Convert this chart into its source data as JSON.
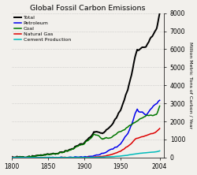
{
  "title": "Global Fossil Carbon Emissions",
  "ylabel": "Million Metric Tons of Carbon / Year",
  "xlim": [
    1800,
    2010
  ],
  "ylim": [
    0,
    8000
  ],
  "yticks": [
    0,
    1000,
    2000,
    3000,
    4000,
    5000,
    6000,
    7000,
    8000
  ],
  "xticks": [
    1800,
    1850,
    1900,
    1950,
    2004
  ],
  "xticklabels": [
    "1800",
    "1850",
    "1900",
    "1950",
    "2004"
  ],
  "background_color": "#f2f0ec",
  "grid_color": "#aaaaaa",
  "series": {
    "Total": {
      "color": "#000000",
      "lw": 1.4
    },
    "Petroleum": {
      "color": "#0000ee",
      "lw": 1.1
    },
    "Coal": {
      "color": "#007700",
      "lw": 1.1
    },
    "Natural Gas": {
      "color": "#dd0000",
      "lw": 1.1
    },
    "Cement Production": {
      "color": "#00bbbb",
      "lw": 1.1
    }
  },
  "coal_keypoints": [
    [
      1800,
      5
    ],
    [
      1820,
      50
    ],
    [
      1860,
      200
    ],
    [
      1880,
      400
    ],
    [
      1900,
      800
    ],
    [
      1910,
      1100
    ],
    [
      1913,
      1300
    ],
    [
      1920,
      1200
    ],
    [
      1925,
      1050
    ],
    [
      1930,
      1100
    ],
    [
      1935,
      1050
    ],
    [
      1940,
      1200
    ],
    [
      1945,
      1350
    ],
    [
      1950,
      1450
    ],
    [
      1955,
      1550
    ],
    [
      1960,
      1700
    ],
    [
      1965,
      1850
    ],
    [
      1970,
      1950
    ],
    [
      1975,
      2100
    ],
    [
      1980,
      2200
    ],
    [
      1985,
      2300
    ],
    [
      1990,
      2350
    ],
    [
      1995,
      2300
    ],
    [
      2000,
      2400
    ],
    [
      2004,
      2800
    ]
  ],
  "petroleum_keypoints": [
    [
      1800,
      0
    ],
    [
      1860,
      0
    ],
    [
      1880,
      5
    ],
    [
      1900,
      30
    ],
    [
      1910,
      80
    ],
    [
      1920,
      150
    ],
    [
      1930,
      300
    ],
    [
      1940,
      500
    ],
    [
      1945,
      600
    ],
    [
      1950,
      750
    ],
    [
      1955,
      1050
    ],
    [
      1960,
      1350
    ],
    [
      1965,
      1800
    ],
    [
      1970,
      2400
    ],
    [
      1973,
      2700
    ],
    [
      1975,
      2550
    ],
    [
      1980,
      2500
    ],
    [
      1985,
      2350
    ],
    [
      1990,
      2600
    ],
    [
      1995,
      2850
    ],
    [
      2000,
      3000
    ],
    [
      2004,
      3200
    ]
  ],
  "natgas_keypoints": [
    [
      1800,
      0
    ],
    [
      1900,
      5
    ],
    [
      1910,
      15
    ],
    [
      1920,
      50
    ],
    [
      1930,
      100
    ],
    [
      1940,
      200
    ],
    [
      1950,
      350
    ],
    [
      1955,
      480
    ],
    [
      1960,
      620
    ],
    [
      1965,
      800
    ],
    [
      1970,
      1000
    ],
    [
      1975,
      1100
    ],
    [
      1980,
      1150
    ],
    [
      1985,
      1200
    ],
    [
      1990,
      1300
    ],
    [
      1995,
      1350
    ],
    [
      2000,
      1450
    ],
    [
      2004,
      1600
    ]
  ],
  "cement_keypoints": [
    [
      1800,
      0
    ],
    [
      1900,
      5
    ],
    [
      1920,
      15
    ],
    [
      1930,
      30
    ],
    [
      1940,
      50
    ],
    [
      1950,
      80
    ],
    [
      1960,
      130
    ],
    [
      1970,
      200
    ],
    [
      1980,
      250
    ],
    [
      1990,
      280
    ],
    [
      1995,
      300
    ],
    [
      2000,
      320
    ],
    [
      2004,
      370
    ]
  ]
}
